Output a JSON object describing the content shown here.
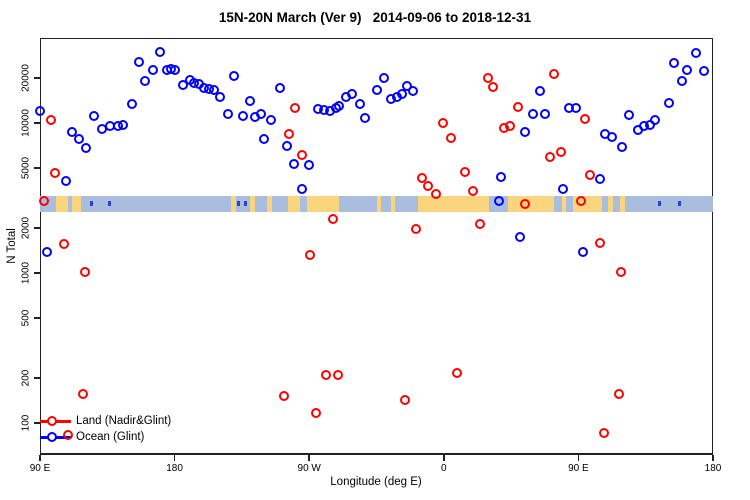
{
  "title": "15N-20N March (Ver 9)   2014-09-06 to 2018-12-31",
  "chart_data": {
    "type": "scatter",
    "title": "15N-20N March (Ver 9)   2014-09-06 to 2018-12-31",
    "xlabel": "Longitude (deg E)",
    "ylabel": "N Total",
    "x_axis": {
      "note": "axis spans 450 deg of longitude eastward starting at 90E (wraps past dateline and prime meridian)",
      "range_deg": [
        0,
        450
      ],
      "ticks": [
        {
          "pos": 0,
          "label": "90 E"
        },
        {
          "pos": 90,
          "label": "180"
        },
        {
          "pos": 180,
          "label": "90 W"
        },
        {
          "pos": 270,
          "label": "0"
        },
        {
          "pos": 360,
          "label": "90 E"
        },
        {
          "pos": 450,
          "label": "180"
        }
      ]
    },
    "y_axis": {
      "scale": "log",
      "range": [
        61,
        37000
      ],
      "ticks": [
        100,
        200,
        500,
        1000,
        2000,
        5000,
        10000,
        20000
      ]
    },
    "grid": false,
    "legend_position": "bottom-left",
    "series": [
      {
        "name": "Land (Nadir&Glint)",
        "color": "#ff0000",
        "marker": "open-circle",
        "points": [
          [
            7.7,
            10300
          ],
          [
            10.7,
            4570
          ],
          [
            3.3,
            2970
          ],
          [
            16.4,
            1540
          ],
          [
            30.4,
            1000
          ],
          [
            29.3,
            155
          ],
          [
            19.3,
            83
          ],
          [
            170.9,
            12400
          ],
          [
            166.9,
            8360
          ],
          [
            175.8,
            6100
          ],
          [
            180.9,
            1300
          ],
          [
            196.0,
            2270
          ],
          [
            191.6,
            207
          ],
          [
            199.8,
            207
          ],
          [
            163.8,
            150
          ],
          [
            184.7,
            116
          ],
          [
            255.8,
            4290
          ],
          [
            259.8,
            3770
          ],
          [
            265.3,
            3330
          ],
          [
            269.8,
            9900
          ],
          [
            274.9,
            7890
          ],
          [
            284.7,
            4640
          ],
          [
            289.8,
            3480
          ],
          [
            252.0,
            1960
          ],
          [
            244.2,
            142
          ],
          [
            294.9,
            2100
          ],
          [
            299.7,
            19800
          ],
          [
            303.1,
            17100
          ],
          [
            319.8,
            12600
          ],
          [
            310.9,
            9120
          ],
          [
            314.7,
            9530
          ],
          [
            324.9,
            2870
          ],
          [
            341.3,
            5900
          ],
          [
            348.7,
            6360
          ],
          [
            344.2,
            20900
          ],
          [
            364.9,
            10500
          ],
          [
            368.0,
            4440
          ],
          [
            362.0,
            2980
          ],
          [
            279.3,
            213
          ],
          [
            374.9,
            1560
          ],
          [
            388.7,
            1000
          ],
          [
            387.6,
            155
          ],
          [
            377.5,
            85
          ]
        ]
      },
      {
        "name": "Ocean (Glint)",
        "color": "#0000ff",
        "marker": "open-circle",
        "points": [
          [
            0.7,
            12000
          ],
          [
            22.0,
            8600
          ],
          [
            26.7,
            7700
          ],
          [
            31.3,
            6800
          ],
          [
            36.7,
            11000
          ],
          [
            42.0,
            9100
          ],
          [
            47.3,
            9400
          ],
          [
            52.7,
            9400
          ],
          [
            56.0,
            9550
          ],
          [
            62.0,
            13200
          ],
          [
            66.7,
            25100
          ],
          [
            70.7,
            18800
          ],
          [
            76.0,
            22200
          ],
          [
            80.7,
            29300
          ],
          [
            85.3,
            22200
          ],
          [
            87.7,
            22700
          ],
          [
            90.7,
            22200
          ],
          [
            96.0,
            17700
          ],
          [
            100.4,
            19100
          ],
          [
            103.3,
            18400
          ],
          [
            106.7,
            17900
          ],
          [
            110.0,
            16900
          ],
          [
            113.3,
            16600
          ],
          [
            116.7,
            16400
          ],
          [
            120.7,
            14700
          ],
          [
            126.0,
            11300
          ],
          [
            130.0,
            20300
          ],
          [
            136.0,
            11000
          ],
          [
            140.7,
            13800
          ],
          [
            144.0,
            10900
          ],
          [
            148.0,
            11300
          ],
          [
            5.3,
            1370
          ],
          [
            17.7,
            4050
          ],
          [
            150.4,
            7750
          ],
          [
            154.9,
            10400
          ],
          [
            160.9,
            16900
          ],
          [
            165.3,
            7000
          ],
          [
            170.4,
            5270
          ],
          [
            180.2,
            5240
          ],
          [
            175.8,
            3590
          ],
          [
            186.0,
            12300
          ],
          [
            190.4,
            12100
          ],
          [
            194.2,
            11900
          ],
          [
            198.0,
            12500
          ],
          [
            200.2,
            12900
          ],
          [
            204.9,
            14700
          ],
          [
            209.1,
            15500
          ],
          [
            214.2,
            13300
          ],
          [
            217.5,
            10700
          ],
          [
            226.0,
            16500
          ],
          [
            230.5,
            19900
          ],
          [
            235.3,
            14300
          ],
          [
            239.3,
            14700
          ],
          [
            242.5,
            15500
          ],
          [
            246.0,
            17600
          ],
          [
            249.8,
            16200
          ],
          [
            307.6,
            2980
          ],
          [
            308.7,
            4340
          ],
          [
            321.6,
            1710
          ],
          [
            324.9,
            8690
          ],
          [
            329.8,
            11300
          ],
          [
            334.7,
            16200
          ],
          [
            338.2,
            11400
          ],
          [
            350.2,
            3590
          ],
          [
            354.2,
            12500
          ],
          [
            359.1,
            12500
          ],
          [
            363.8,
            1370
          ],
          [
            374.7,
            4200
          ],
          [
            378.2,
            8360
          ],
          [
            383.1,
            8030
          ],
          [
            389.3,
            6810
          ],
          [
            394.2,
            11200
          ],
          [
            400.0,
            8920
          ],
          [
            404.0,
            9440
          ],
          [
            408.4,
            9600
          ],
          [
            411.8,
            10400
          ],
          [
            421.1,
            13400
          ],
          [
            424.5,
            25000
          ],
          [
            429.5,
            18800
          ],
          [
            433.3,
            22300
          ],
          [
            438.9,
            28800
          ],
          [
            444.5,
            22000
          ]
        ]
      }
    ],
    "map_band": {
      "description": "land/ocean strip for the 15N-20N latitude band drawn across the plot",
      "n_range": [
        2570,
        3280
      ],
      "ocean_color": "#a9bdde",
      "land_color": "#fad57e",
      "island_color": "#3143c4",
      "land_segments_deg": [
        [
          10.7,
          18.7
        ],
        [
          21.3,
          27.3
        ],
        [
          128,
          131.3
        ],
        [
          140.7,
          144
        ],
        [
          152,
          155.3
        ],
        [
          166,
          174
        ],
        [
          178.7,
          200
        ],
        [
          225.3,
          228
        ],
        [
          234.7,
          237.3
        ],
        [
          252.7,
          300
        ],
        [
          312.7,
          344
        ],
        [
          348.7,
          352
        ],
        [
          356.7,
          376
        ],
        [
          380,
          383.3
        ],
        [
          388,
          391.3
        ]
      ],
      "island_segments_deg": [
        [
          33.3,
          35.3
        ],
        [
          45.3,
          47.3
        ],
        [
          131.5,
          133.5
        ],
        [
          136.5,
          138.5
        ],
        [
          413.3,
          415.3
        ],
        [
          426.7,
          428.7
        ]
      ]
    }
  }
}
